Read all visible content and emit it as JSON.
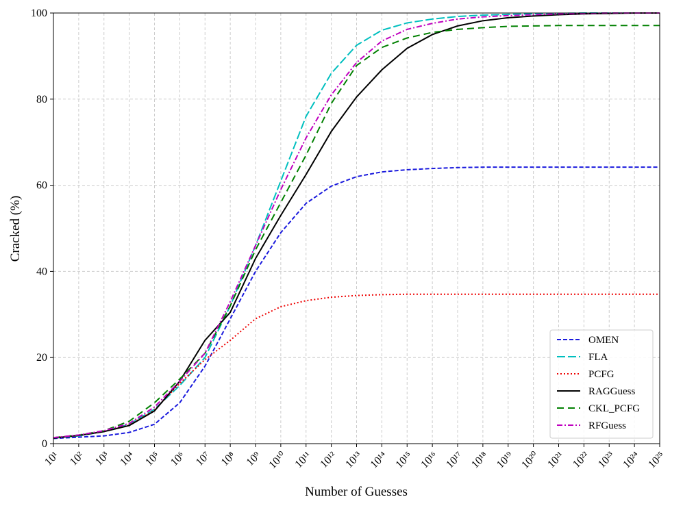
{
  "chart_data": {
    "type": "line",
    "xlabel": "Number of Guesses",
    "ylabel": "Cracked (%)",
    "xscale": "log",
    "grid": true,
    "legend": "lower right",
    "x": [
      10.0,
      100.0,
      1000.0,
      10000.0,
      100000.0,
      1000000.0,
      10000000.0,
      100000000.0,
      1000000000.0,
      10000000000.0,
      100000000000.0,
      1000000000000.0,
      10000000000000.0,
      100000000000000.0,
      1000000000000000.0,
      1e+16,
      1e+17,
      1e+18,
      1e+19,
      1e+20,
      1e+21,
      1e+22,
      1e+23,
      1e+24,
      1e+25
    ],
    "xlim": [
      10.0,
      1e+25
    ],
    "xticks": [
      {
        "value": 10.0,
        "label": "10¹"
      },
      {
        "value": 100.0,
        "label": "10²"
      },
      {
        "value": 1000.0,
        "label": "10³"
      },
      {
        "value": 10000.0,
        "label": "10⁴"
      },
      {
        "value": 100000.0,
        "label": "10⁵"
      },
      {
        "value": 1000000.0,
        "label": "10⁶"
      },
      {
        "value": 10000000.0,
        "label": "10⁷"
      },
      {
        "value": 100000000.0,
        "label": "10⁸"
      },
      {
        "value": 1000000000.0,
        "label": "10⁹"
      },
      {
        "value": 10000000000.0,
        "label": "10¹⁰"
      },
      {
        "value": 100000000000.0,
        "label": "10¹¹"
      },
      {
        "value": 1000000000000.0,
        "label": "10¹²"
      },
      {
        "value": 10000000000000.0,
        "label": "10¹³"
      },
      {
        "value": 100000000000000.0,
        "label": "10¹⁴"
      },
      {
        "value": 1000000000000000.0,
        "label": "10¹⁵"
      },
      {
        "value": 1e+16,
        "label": "10¹⁶"
      },
      {
        "value": 1e+17,
        "label": "10¹⁷"
      },
      {
        "value": 1e+18,
        "label": "10¹⁸"
      },
      {
        "value": 1e+19,
        "label": "10¹⁹"
      },
      {
        "value": 1e+20,
        "label": "10²⁰"
      },
      {
        "value": 1e+21,
        "label": "10²¹"
      },
      {
        "value": 1e+22,
        "label": "10²²"
      },
      {
        "value": 1e+23,
        "label": "10²³"
      },
      {
        "value": 1e+24,
        "label": "10²⁴"
      },
      {
        "value": 1e+25,
        "label": "10²⁵"
      }
    ],
    "ylim": [
      0,
      100
    ],
    "yticks": [
      0,
      20,
      40,
      60,
      80,
      100
    ],
    "series": [
      {
        "name": "OMEN",
        "color": "#1a1add",
        "linestyle": "dashed",
        "values": [
          1.2,
          1.5,
          1.8,
          2.6,
          4.5,
          9.5,
          18,
          29,
          40,
          49,
          55.8,
          59.8,
          62,
          63.1,
          63.6,
          63.9,
          64.1,
          64.2,
          64.2,
          64.2,
          64.2,
          64.2,
          64.2,
          64.2,
          64.2
        ]
      },
      {
        "name": "FLA",
        "color": "#00bfbf",
        "linestyle": "longdash",
        "values": [
          1.3,
          1.8,
          2.8,
          4.5,
          8,
          13.5,
          20,
          32,
          46,
          61,
          76,
          86,
          92.5,
          96,
          97.7,
          98.6,
          99.2,
          99.5,
          99.7,
          99.8,
          99.9,
          100,
          100,
          100,
          100
        ]
      },
      {
        "name": "PCFG",
        "color": "#ee0000",
        "linestyle": "dotted",
        "values": [
          1.3,
          1.9,
          2.8,
          4.3,
          7.8,
          14,
          19.5,
          24,
          29,
          31.8,
          33.2,
          34,
          34.4,
          34.6,
          34.7,
          34.7,
          34.7,
          34.7,
          34.7,
          34.7,
          34.7,
          34.7,
          34.7,
          34.7,
          34.7
        ]
      },
      {
        "name": "RAGGuess",
        "color": "#000000",
        "linestyle": "solid",
        "values": [
          1.3,
          1.9,
          2.8,
          4.2,
          7.6,
          14.5,
          24,
          30.5,
          43,
          53,
          62.5,
          72.5,
          80.5,
          86.8,
          91.8,
          95,
          97,
          98.2,
          98.9,
          99.3,
          99.6,
          99.8,
          99.9,
          100,
          100
        ]
      },
      {
        "name": "CKL_PCFG",
        "color": "#008000",
        "linestyle": "widedash",
        "values": [
          1.4,
          2,
          3,
          5.2,
          9.5,
          15,
          21,
          32,
          45,
          56,
          67,
          79,
          87.8,
          92,
          94.2,
          95.5,
          96.2,
          96.6,
          96.9,
          97,
          97.1,
          97.1,
          97.1,
          97.1,
          97.1
        ]
      },
      {
        "name": "RFGuess",
        "color": "#bf00bf",
        "linestyle": "dashdot",
        "values": [
          1.4,
          2,
          3,
          4.7,
          8.5,
          14.5,
          21,
          33,
          46,
          59,
          71,
          81,
          88.5,
          93.5,
          96.2,
          97.6,
          98.6,
          99.1,
          99.4,
          99.6,
          99.8,
          99.9,
          100,
          100,
          100
        ]
      }
    ]
  }
}
